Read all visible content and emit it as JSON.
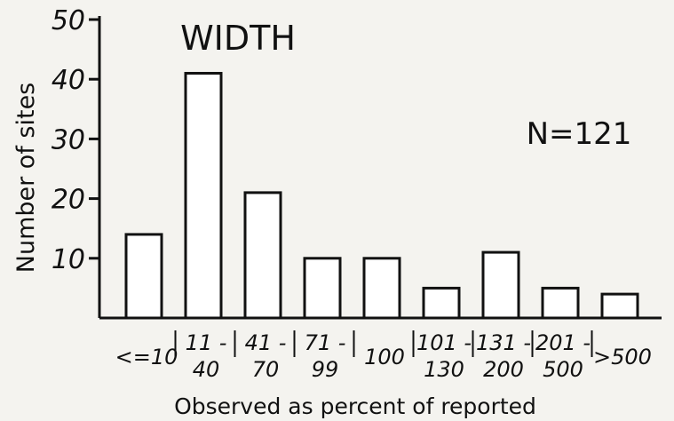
{
  "chart_data": {
    "type": "bar",
    "title": "WIDTH",
    "annotation": "N=121",
    "xlabel": "Observed as percent of reported",
    "ylabel": "Number of sites",
    "categories": [
      [
        "<=10"
      ],
      [
        "11 -",
        "40"
      ],
      [
        "41 -",
        "70"
      ],
      [
        "71 -",
        "99"
      ],
      [
        "100"
      ],
      [
        "101 -",
        "130"
      ],
      [
        "131 -",
        "200"
      ],
      [
        "201 -",
        "500"
      ],
      [
        ">500"
      ]
    ],
    "values": [
      14,
      41,
      21,
      10,
      10,
      5,
      11,
      5,
      4
    ],
    "ylim": [
      0,
      50
    ],
    "yticks": [
      "10",
      "20",
      "30",
      "40",
      "50"
    ],
    "grid": false,
    "colors": {
      "bar_fill": "#ffffff",
      "stroke": "#111111",
      "background": "#f4f3ef"
    }
  }
}
